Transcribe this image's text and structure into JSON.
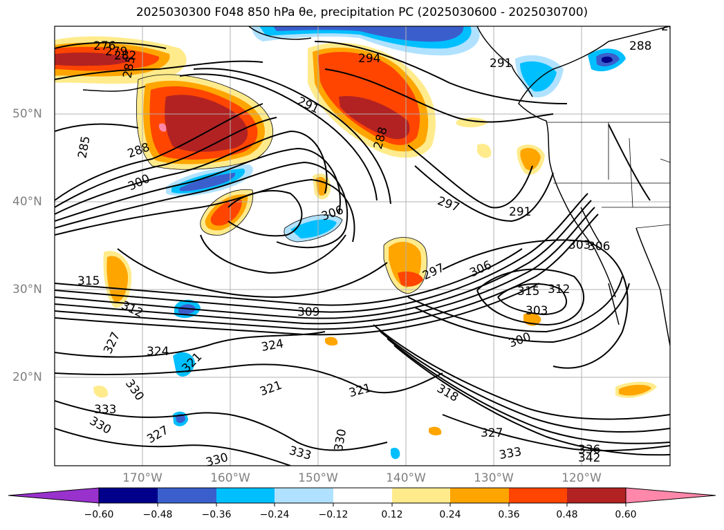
{
  "title": "2025030300 F048 850 hPa θe, precipitation PC (2025030600 - 2025030700)",
  "lat_labels": [
    "50°N",
    "40°N",
    "30°N",
    "20°N"
  ],
  "lon_labels": [
    "170°W",
    "160°W",
    "150°W",
    "140°W",
    "130°W",
    "120°W"
  ],
  "colorbar": {
    "ticks": [
      "−0.60",
      "−0.48",
      "−0.36",
      "−0.24",
      "−0.12",
      "0.12",
      "0.24",
      "0.36",
      "0.48",
      "0.60"
    ],
    "colors": [
      "#9932cc",
      "#00008b",
      "#3a5fcd",
      "#00bfff",
      "#b0e2ff",
      "#ffffff",
      "#ffeb8c",
      "#ffa500",
      "#ff4500",
      "#b22222",
      "#ff88aa"
    ]
  },
  "contour_labels": [
    "276",
    "279",
    "282",
    "285",
    "285",
    "288",
    "288",
    "291",
    "294",
    "288",
    "300",
    "306",
    "297",
    "291",
    "291",
    "288",
    "315",
    "312",
    "309",
    "297",
    "306",
    "303",
    "306",
    "315",
    "312",
    "303",
    "300",
    "327",
    "324",
    "324",
    "321",
    "321",
    "321",
    "318",
    "330",
    "333",
    "330",
    "327",
    "330",
    "333",
    "330",
    "327",
    "333",
    "336",
    "342"
  ]
}
